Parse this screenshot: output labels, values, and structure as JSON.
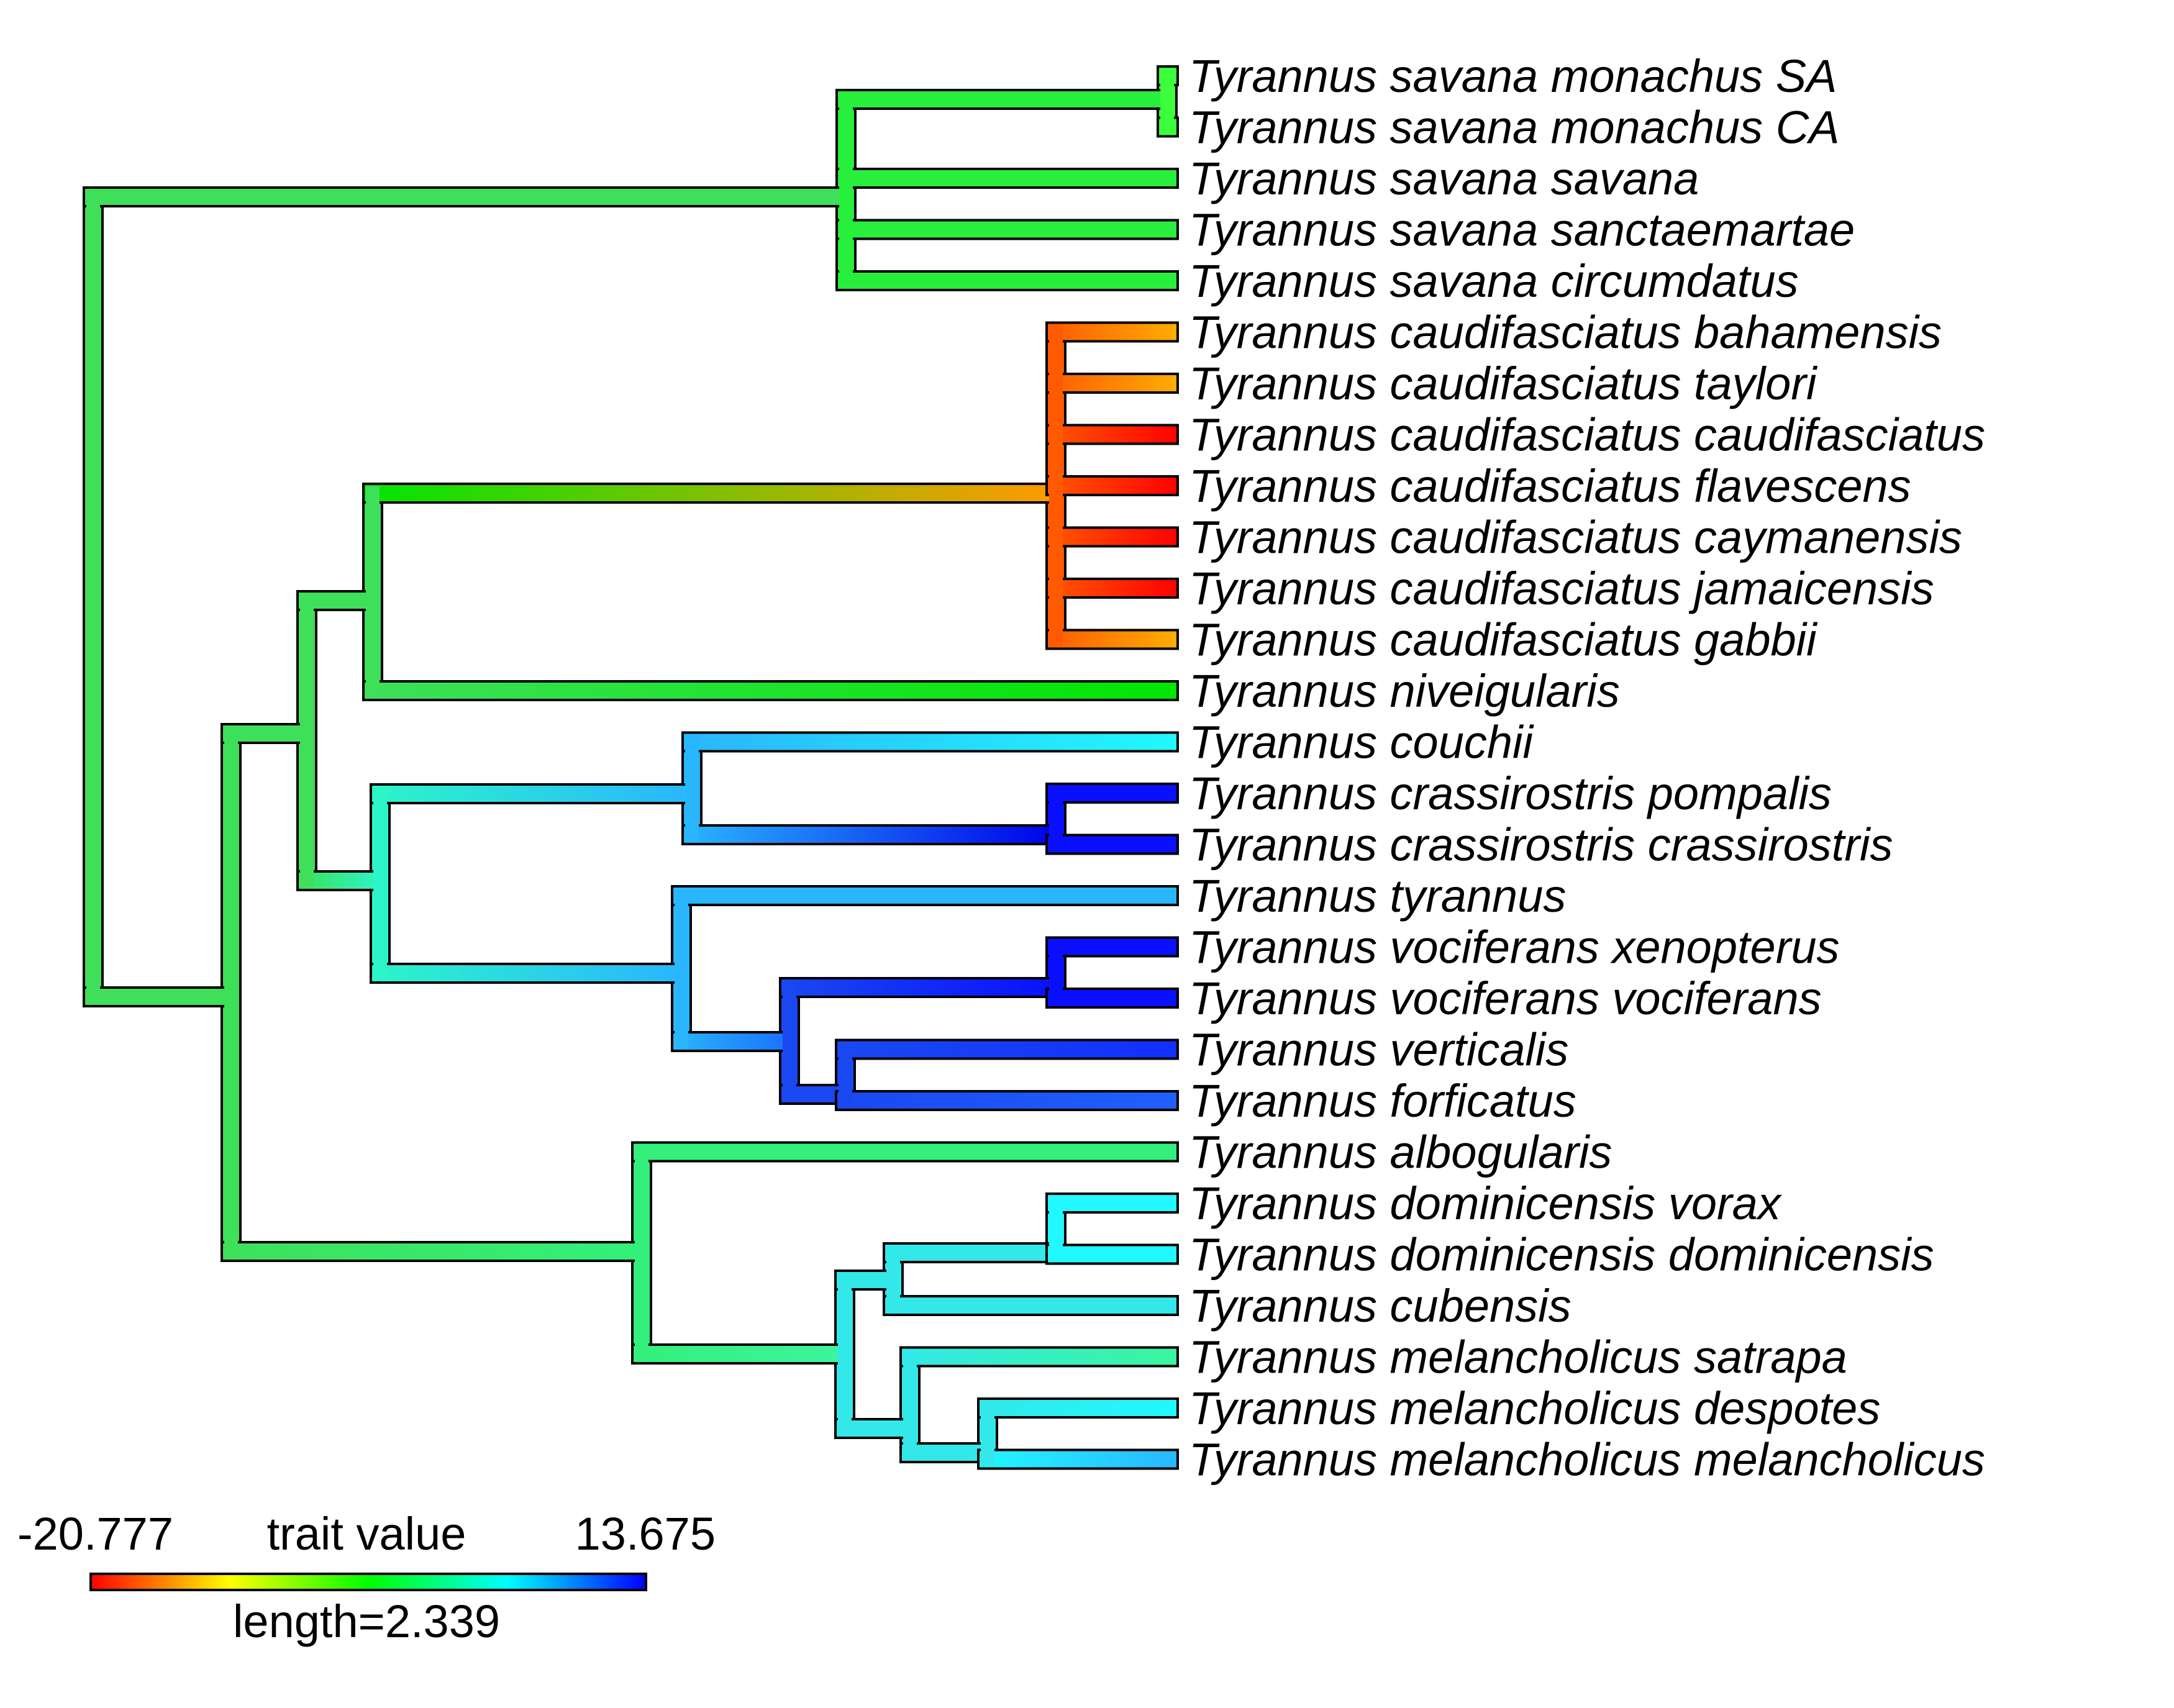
{
  "legend": {
    "min_label": "-20.777",
    "max_label": "13.675",
    "title": "trait value",
    "length_label": "length=2.339",
    "gradient_colors": [
      "#ff0000",
      "#ffff00",
      "#00ff00",
      "#00ffff",
      "#0000ff"
    ]
  },
  "tips": [
    "Tyrannus savana monachus SA",
    "Tyrannus savana monachus CA",
    "Tyrannus savana savana",
    "Tyrannus savana sanctaemartae",
    "Tyrannus savana circumdatus",
    "Tyrannus caudifasciatus bahamensis",
    "Tyrannus caudifasciatus taylori",
    "Tyrannus caudifasciatus caudifasciatus",
    "Tyrannus caudifasciatus flavescens",
    "Tyrannus caudifasciatus caymanensis",
    "Tyrannus caudifasciatus jamaicensis",
    "Tyrannus caudifasciatus gabbii",
    "Tyrannus niveigularis",
    "Tyrannus couchii",
    "Tyrannus crassirostris pompalis",
    "Tyrannus crassirostris crassirostris",
    "Tyrannus tyrannus",
    "Tyrannus vociferans xenopterus",
    "Tyrannus vociferans vociferans",
    "Tyrannus verticalis",
    "Tyrannus forficatus",
    "Tyrannus albogularis",
    "Tyrannus dominicensis vorax",
    "Tyrannus dominicensis dominicensis",
    "Tyrannus cubensis",
    "Tyrannus melancholicus satrapa",
    "Tyrannus melancholicus despotes",
    "Tyrannus melancholicus melancholicus"
  ]
}
